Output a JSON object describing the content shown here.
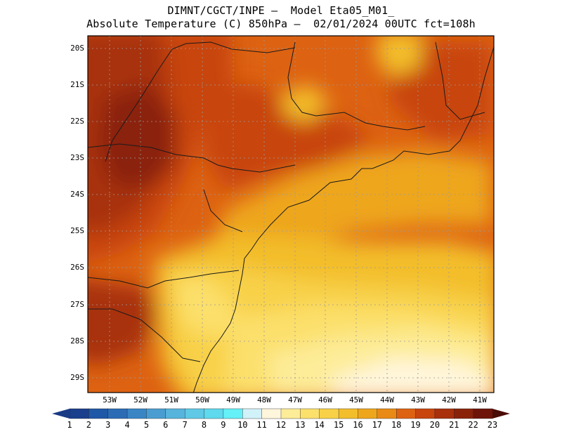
{
  "title": {
    "line1": "DIMNT/CGCT/INPE –  Model Eta05_M01_",
    "line2": "Absolute Temperature (C) 850hPa –  02/01/2024 00UTC fct=108h"
  },
  "map": {
    "variable": "Absolute Temperature (C) 850hPa",
    "lon_range": [
      -53.7,
      -40.5
    ],
    "lat_range": [
      -29.5,
      -19.7
    ],
    "lat_labels": [
      "20S",
      "21S",
      "22S",
      "23S",
      "24S",
      "25S",
      "26S",
      "27S",
      "28S",
      "29S"
    ],
    "lon_labels": [
      "53W",
      "52W",
      "51W",
      "50W",
      "49W",
      "48W",
      "47W",
      "46W",
      "45W",
      "44W",
      "43W",
      "42W",
      "41W"
    ]
  },
  "colorbar": {
    "labels": [
      "1",
      "2",
      "3",
      "4",
      "5",
      "6",
      "7",
      "8",
      "9",
      "10",
      "11",
      "12",
      "13",
      "14",
      "15",
      "16",
      "17",
      "18",
      "19",
      "20",
      "21",
      "22",
      "23"
    ],
    "colors": [
      "#1a3f8c",
      "#1f58a6",
      "#2b6cb5",
      "#3a85c4",
      "#4a9dd0",
      "#57b4dc",
      "#5fc9e6",
      "#5ed9ee",
      "#66f0f8",
      "#d2f2fa",
      "#fff6dc",
      "#fdec98",
      "#fce06c",
      "#f8d148",
      "#f3be2c",
      "#eea61c",
      "#e98a16",
      "#dd6212",
      "#c8450e",
      "#a8300c",
      "#8a220a",
      "#6e1409"
    ],
    "left_arrow": "#1a3a86",
    "right_arrow": "#4a0c07"
  }
}
